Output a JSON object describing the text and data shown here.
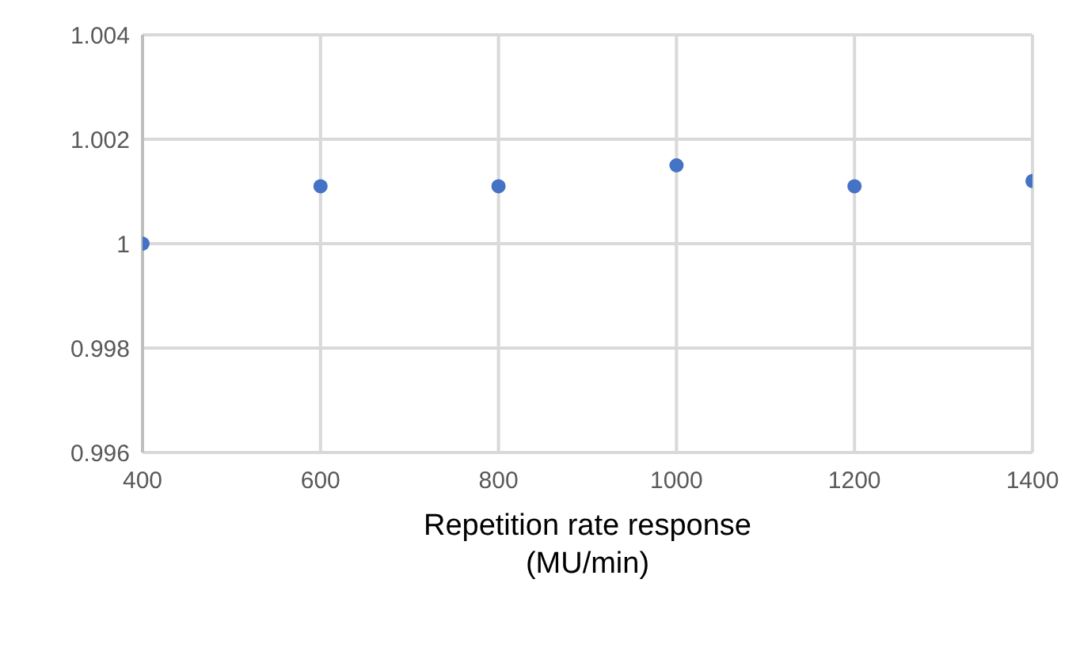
{
  "chart_data": {
    "type": "scatter",
    "xlabel": "Repetition rate response (MU/min)",
    "x": [
      400,
      600,
      800,
      1000,
      1200,
      1400
    ],
    "series": [
      {
        "color": "#4472c4",
        "values": [
          1.0,
          1.0011,
          1.0011,
          1.0015,
          1.0011,
          1.0012
        ]
      }
    ],
    "xlim": [
      400,
      1400
    ],
    "xticks": [
      400,
      600,
      800,
      1000,
      1200,
      1400
    ],
    "ylim": [
      0.996,
      1.004
    ],
    "yticks": [
      0.996,
      0.998,
      1,
      1.002,
      1.004
    ],
    "grid": true,
    "marker": "circle"
  }
}
